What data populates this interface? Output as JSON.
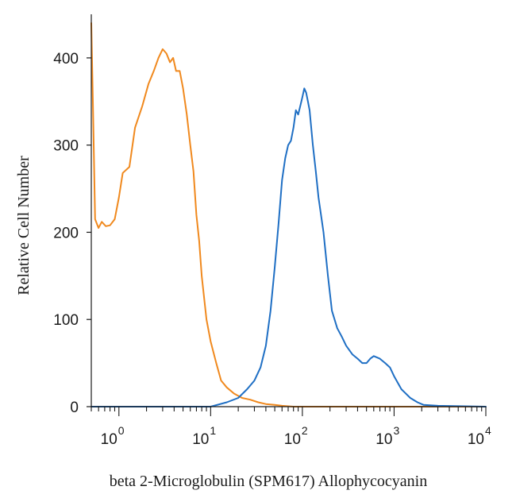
{
  "chart_data": {
    "type": "line",
    "title": "",
    "xlabel": "beta 2-Microglobulin (SPM617) Allophycocyanin",
    "ylabel": "Relative Cell Number",
    "xscale": "log",
    "xlim": [
      0.5,
      10000
    ],
    "ylim": [
      0,
      450
    ],
    "grid": false,
    "x_ticks": [
      {
        "base": "10",
        "exp": "0"
      },
      {
        "base": "10",
        "exp": "1"
      },
      {
        "base": "10",
        "exp": "2"
      },
      {
        "base": "10",
        "exp": "3"
      },
      {
        "base": "10",
        "exp": "4"
      }
    ],
    "y_ticks": [
      "0",
      "100",
      "200",
      "300",
      "400"
    ],
    "series": [
      {
        "color": "#f0891e",
        "x": [
          0.5,
          0.52,
          0.55,
          0.6,
          0.65,
          0.72,
          0.8,
          0.9,
          1.0,
          1.1,
          1.3,
          1.5,
          1.8,
          2.1,
          2.4,
          2.7,
          3.0,
          3.3,
          3.6,
          3.9,
          4.2,
          4.6,
          5.0,
          5.5,
          6.0,
          6.5,
          7.0,
          7.5,
          8.0,
          9.0,
          10.0,
          11.5,
          13.0,
          15.0,
          18.0,
          22.0,
          27.0,
          33.0,
          40.0,
          50.0,
          60.0,
          80.0,
          150.0,
          1000.0,
          10000.0
        ],
        "y": [
          440,
          350,
          215,
          205,
          212,
          207,
          208,
          215,
          240,
          268,
          275,
          320,
          345,
          370,
          385,
          400,
          410,
          405,
          395,
          400,
          385,
          385,
          365,
          335,
          300,
          270,
          220,
          190,
          150,
          100,
          75,
          50,
          30,
          22,
          15,
          10,
          8,
          5,
          3,
          2,
          1,
          0,
          0,
          0,
          0
        ]
      },
      {
        "color": "#1f6fc4",
        "x": [
          0.5,
          10.0,
          15.0,
          20.0,
          25.0,
          30.0,
          35.0,
          40.0,
          45.0,
          50.0,
          55.0,
          60.0,
          65.0,
          70.0,
          75.0,
          80.0,
          85.0,
          90.0,
          95.0,
          100.0,
          105.0,
          110.0,
          115.0,
          120.0,
          130.0,
          140.0,
          150.0,
          170.0,
          190.0,
          210.0,
          240.0,
          270.0,
          300.0,
          350.0,
          400.0,
          450.0,
          500.0,
          550.0,
          600.0,
          700.0,
          800.0,
          900.0,
          1000.0,
          1200.0,
          1500.0,
          1800.0,
          2100.0,
          3000.0,
          10000.0
        ],
        "y": [
          0,
          0,
          5,
          10,
          20,
          30,
          45,
          70,
          110,
          160,
          210,
          260,
          285,
          300,
          305,
          320,
          340,
          335,
          345,
          355,
          365,
          360,
          350,
          340,
          300,
          270,
          240,
          200,
          150,
          110,
          90,
          80,
          70,
          60,
          55,
          50,
          50,
          55,
          58,
          55,
          50,
          45,
          35,
          20,
          10,
          5,
          2,
          1,
          0
        ]
      }
    ]
  }
}
